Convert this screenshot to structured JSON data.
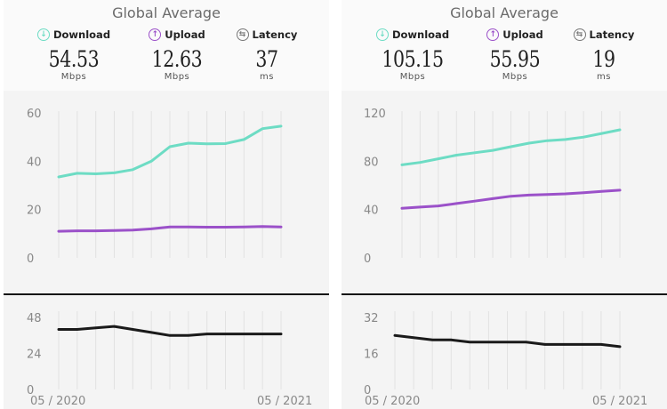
{
  "panels": [
    {
      "title": "Global Average",
      "metrics": {
        "download": {
          "label": "Download",
          "value": "54.53",
          "unit": "Mbps"
        },
        "upload": {
          "label": "Upload",
          "value": "12.63",
          "unit": "Mbps"
        },
        "latency": {
          "label": "Latency",
          "value": "37",
          "unit": "ms"
        }
      },
      "x_labels": [
        "05 / 2020",
        "05 / 2021"
      ]
    },
    {
      "title": "Global Average",
      "metrics": {
        "download": {
          "label": "Download",
          "value": "105.15",
          "unit": "Mbps"
        },
        "upload": {
          "label": "Upload",
          "value": "55.95",
          "unit": "Mbps"
        },
        "latency": {
          "label": "Latency",
          "value": "19",
          "unit": "ms"
        }
      },
      "x_labels": [
        "05 / 2020",
        "05 / 2021"
      ]
    }
  ],
  "colors": {
    "download": "#6ddcc4",
    "upload": "#9b51c9",
    "latency": "#1a1a1a",
    "icon_latency": "#777777"
  },
  "icons": {
    "download": "arrow-down-circle-icon",
    "upload": "arrow-up-circle-icon",
    "latency": "exchange-arrows-circle-icon"
  },
  "chart_data": [
    {
      "type": "line",
      "x": [
        "05/2020",
        "06/2020",
        "07/2020",
        "08/2020",
        "09/2020",
        "10/2020",
        "11/2020",
        "12/2020",
        "01/2021",
        "02/2021",
        "03/2021",
        "04/2021",
        "05/2021"
      ],
      "series": [
        {
          "key": "download",
          "values": [
            33.5,
            35,
            34.8,
            35.2,
            36.5,
            40,
            46,
            47.5,
            47.2,
            47.3,
            49,
            53.5,
            54.5
          ]
        },
        {
          "key": "upload",
          "values": [
            11,
            11.2,
            11.2,
            11.3,
            11.5,
            12,
            12.8,
            12.8,
            12.7,
            12.7,
            12.8,
            13,
            12.8
          ]
        }
      ],
      "yticks": [
        0,
        20,
        40,
        60
      ],
      "ylim": [
        0,
        60
      ]
    },
    {
      "type": "line",
      "x": [
        "05/2020",
        "06/2020",
        "07/2020",
        "08/2020",
        "09/2020",
        "10/2020",
        "11/2020",
        "12/2020",
        "01/2021",
        "02/2021",
        "03/2021",
        "04/2021",
        "05/2021"
      ],
      "series": [
        {
          "key": "latency",
          "values": [
            40,
            40,
            41,
            42,
            40,
            38,
            36,
            36,
            37,
            37,
            37,
            37,
            37
          ]
        }
      ],
      "yticks": [
        0,
        24,
        48
      ],
      "ylim": [
        0,
        48
      ]
    },
    {
      "type": "line",
      "x": [
        "05/2020",
        "06/2020",
        "07/2020",
        "08/2020",
        "09/2020",
        "10/2020",
        "11/2020",
        "12/2020",
        "01/2021",
        "02/2021",
        "03/2021",
        "04/2021",
        "05/2021"
      ],
      "series": [
        {
          "key": "download",
          "values": [
            77,
            79,
            82,
            85,
            87,
            89,
            92,
            95,
            97,
            98,
            100,
            103,
            106
          ]
        },
        {
          "key": "upload",
          "values": [
            41,
            42,
            43,
            45,
            47,
            49,
            51,
            52,
            52.5,
            53,
            54,
            55,
            56
          ]
        }
      ],
      "yticks": [
        0,
        40,
        80,
        120
      ],
      "ylim": [
        0,
        120
      ]
    },
    {
      "type": "line",
      "x": [
        "05/2020",
        "06/2020",
        "07/2020",
        "08/2020",
        "09/2020",
        "10/2020",
        "11/2020",
        "12/2020",
        "01/2021",
        "02/2021",
        "03/2021",
        "04/2021",
        "05/2021"
      ],
      "series": [
        {
          "key": "latency",
          "values": [
            24,
            23,
            22,
            22,
            21,
            21,
            21,
            21,
            20,
            20,
            20,
            20,
            19
          ]
        }
      ],
      "yticks": [
        0,
        16,
        32
      ],
      "ylim": [
        0,
        32
      ]
    }
  ]
}
